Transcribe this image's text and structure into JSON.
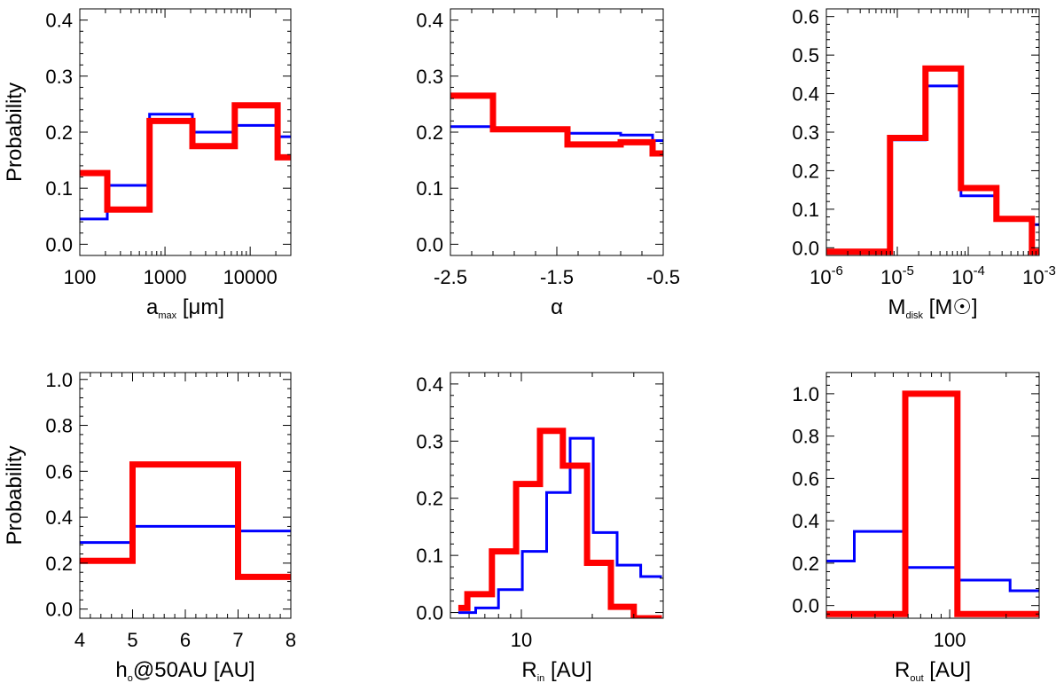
{
  "colors": {
    "blue": "#0000ff",
    "red": "#ff0000",
    "axis": "#000000"
  },
  "chart_data": [
    {
      "id": "amax",
      "type": "histogram-step",
      "xscale": "log",
      "xlim": [
        100,
        30000
      ],
      "ylim": [
        -0.02,
        0.42
      ],
      "xticks": [
        100,
        1000,
        10000
      ],
      "xtick_labels": [
        "100",
        "1000",
        "10000"
      ],
      "yticks": [
        0,
        0.1,
        0.2,
        0.3,
        0.4
      ],
      "ytick_labels": [
        "0.0",
        "0.1",
        "0.2",
        "0.3",
        "0.4"
      ],
      "ylabel": "Probability",
      "xlabel": {
        "base": "a",
        "sub": "max",
        "rest": " [μm]"
      },
      "series": [
        {
          "name": "blue",
          "edges": [
            100,
            210,
            660,
            2100,
            6600,
            21000,
            30000
          ],
          "values": [
            0.045,
            0.105,
            0.232,
            0.2,
            0.212,
            0.192
          ]
        },
        {
          "name": "red",
          "edges": [
            100,
            210,
            660,
            2100,
            6600,
            21000,
            30000
          ],
          "values": [
            0.127,
            0.062,
            0.22,
            0.175,
            0.248,
            0.155
          ]
        }
      ]
    },
    {
      "id": "alpha",
      "type": "histogram-step",
      "xscale": "linear",
      "xlim": [
        -2.5,
        -0.5
      ],
      "ylim": [
        -0.02,
        0.42
      ],
      "xticks": [
        -2.5,
        -1.5,
        -0.5
      ],
      "xtick_labels": [
        "-2.5",
        "-1.5",
        "-0.5"
      ],
      "yticks": [
        0,
        0.1,
        0.2,
        0.3,
        0.4
      ],
      "ytick_labels": [
        "0.0",
        "0.1",
        "0.2",
        "0.3",
        "0.4"
      ],
      "ylabel": "",
      "xlabel": {
        "base": "α",
        "sub": "",
        "rest": ""
      },
      "series": [
        {
          "name": "blue",
          "edges": [
            -2.5,
            -2.1,
            -1.4,
            -0.9,
            -0.6,
            -0.5
          ],
          "values": [
            0.21,
            0.205,
            0.198,
            0.195,
            0.185
          ]
        },
        {
          "name": "red",
          "edges": [
            -2.5,
            -2.1,
            -1.4,
            -0.9,
            -0.6,
            -0.5
          ],
          "values": [
            0.265,
            0.205,
            0.178,
            0.182,
            0.162
          ]
        }
      ]
    },
    {
      "id": "mdisk",
      "type": "histogram-step",
      "xscale": "log",
      "xlim": [
        1e-06,
        0.001
      ],
      "ylim": [
        -0.02,
        0.62
      ],
      "xticks": [
        1e-06,
        1e-05,
        0.0001,
        0.001
      ],
      "xtick_labels": [
        "10",
        "10",
        "10",
        "10"
      ],
      "xtick_exponents": [
        "-6",
        "-5",
        "-4",
        "-3"
      ],
      "yticks": [
        0,
        0.1,
        0.2,
        0.3,
        0.4,
        0.5,
        0.6
      ],
      "ytick_labels": [
        "0.0",
        "0.1",
        "0.2",
        "0.3",
        "0.4",
        "0.5",
        "0.6"
      ],
      "ylabel": "",
      "xlabel": {
        "base": "M",
        "sub": "disk",
        "rest": " [M",
        "sun": "☉",
        "close": "]"
      },
      "series": [
        {
          "name": "blue",
          "edges": [
            1e-06,
            7.9e-06,
            2.5e-05,
            7.9e-05,
            0.00025,
            0.00079,
            0.001
          ],
          "values": [
            -0.01,
            0.28,
            0.42,
            0.135,
            0.075,
            0.06
          ]
        },
        {
          "name": "red",
          "edges": [
            1e-06,
            7.9e-06,
            2.5e-05,
            7.9e-05,
            0.00025,
            0.00079,
            0.001
          ],
          "values": [
            -0.01,
            0.285,
            0.465,
            0.155,
            0.075,
            -0.01
          ]
        }
      ]
    },
    {
      "id": "h0",
      "type": "histogram-step",
      "xscale": "linear",
      "xlim": [
        4,
        8
      ],
      "ylim": [
        -0.04,
        1.03
      ],
      "xticks": [
        4,
        5,
        6,
        7,
        8
      ],
      "xtick_labels": [
        "4",
        "5",
        "6",
        "7",
        "8"
      ],
      "yticks": [
        0,
        0.2,
        0.4,
        0.6,
        0.8,
        1.0
      ],
      "ytick_labels": [
        "0.0",
        "0.2",
        "0.4",
        "0.6",
        "0.8",
        "1.0"
      ],
      "ylabel": "Probability",
      "xlabel": {
        "base": "h",
        "sub": "o",
        "rest": "@50AU [AU]"
      },
      "series": [
        {
          "name": "blue",
          "edges": [
            4,
            5,
            7,
            8
          ],
          "values": [
            0.29,
            0.36,
            0.34
          ]
        },
        {
          "name": "red",
          "edges": [
            4,
            5,
            7,
            8
          ],
          "values": [
            0.21,
            0.63,
            0.14
          ]
        }
      ]
    },
    {
      "id": "rin",
      "type": "histogram-step",
      "xscale": "log",
      "xlim": [
        5,
        40
      ],
      "ylim": [
        -0.01,
        0.42
      ],
      "xticks": [
        10
      ],
      "xtick_labels": [
        "10"
      ],
      "yticks": [
        0,
        0.1,
        0.2,
        0.3,
        0.4
      ],
      "ytick_labels": [
        "0.0",
        "0.1",
        "0.2",
        "0.3",
        "0.4"
      ],
      "ylabel": "",
      "xlabel": {
        "base": "R",
        "sub": "in",
        "rest": " [AU]"
      },
      "series": [
        {
          "name": "blue",
          "edges": [
            5.4,
            6.4,
            8.0,
            10.1,
            12.8,
            16.1,
            20.2,
            25.5,
            32.1,
            39.5
          ],
          "values": [
            0.0,
            0.008,
            0.04,
            0.107,
            0.21,
            0.305,
            0.14,
            0.083,
            0.063
          ]
        },
        {
          "name": "red",
          "edges": [
            5.4,
            5.9,
            7.5,
            9.5,
            12.0,
            15.0,
            19.0,
            24.0,
            30.0,
            39.5
          ],
          "values": [
            0.008,
            0.032,
            0.107,
            0.225,
            0.318,
            0.257,
            0.087,
            0.01,
            -0.01
          ]
        }
      ]
    },
    {
      "id": "rout",
      "type": "histogram-step",
      "xscale": "log",
      "xlim": [
        22,
        300
      ],
      "ylim": [
        -0.06,
        1.1
      ],
      "xticks": [
        100
      ],
      "xtick_labels": [
        "100"
      ],
      "yticks": [
        0,
        0.2,
        0.4,
        0.6,
        0.8,
        1.0
      ],
      "ytick_labels": [
        "0.0",
        "0.2",
        "0.4",
        "0.6",
        "0.8",
        "1.0"
      ],
      "ylabel": "",
      "xlabel": {
        "base": "R",
        "sub": "out",
        "rest": " [AU]"
      },
      "series": [
        {
          "name": "blue",
          "edges": [
            22,
            31,
            58,
            110,
            210,
            300
          ],
          "values": [
            0.21,
            0.35,
            0.18,
            0.12,
            0.07
          ]
        },
        {
          "name": "red",
          "edges": [
            22,
            58,
            110,
            300
          ],
          "values": [
            -0.04,
            1.0,
            -0.04
          ]
        }
      ]
    }
  ]
}
